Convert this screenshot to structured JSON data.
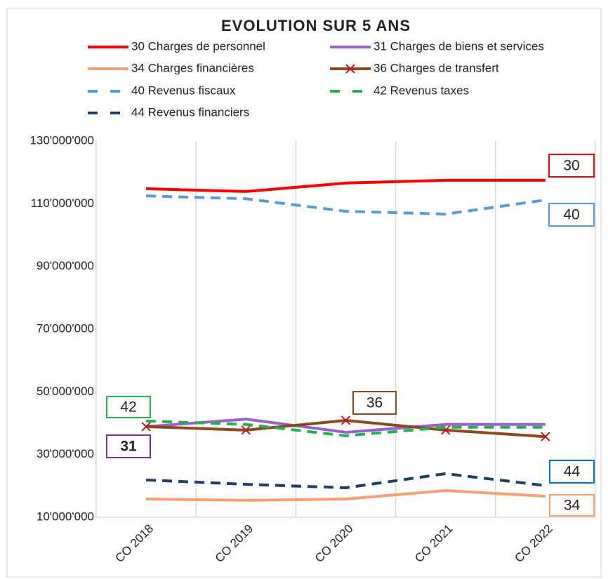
{
  "chart_data": {
    "type": "line",
    "title": "EVOLUTION SUR 5 ANS",
    "categories": [
      "CO 2018",
      "CO 2019",
      "CO 2020",
      "CO 2021",
      "CO 2022"
    ],
    "series": [
      {
        "name": "30 Charges de personnel",
        "color": "#ff0000",
        "values": [
          114800000,
          113900000,
          116600000,
          117500000,
          117500000
        ]
      },
      {
        "name": "31 Charges de biens et services",
        "color": "#9b5fd1",
        "values": [
          38900000,
          41300000,
          37100000,
          39600000,
          39600000
        ]
      },
      {
        "name": "34 Charges financières",
        "color": "#f4a070",
        "values": [
          15800000,
          15400000,
          15800000,
          18500000,
          16700000
        ]
      },
      {
        "name": "36 Charges de transfert",
        "color": "#8b4a1e",
        "marker": "x",
        "marker_color": "#c0141c",
        "values": [
          38900000,
          37800000,
          40900000,
          37800000,
          35700000
        ]
      },
      {
        "name": "40 Revenus fiscaux",
        "color": "#5b9bd5",
        "dash": true,
        "values": [
          112500000,
          111600000,
          107600000,
          106700000,
          111200000
        ]
      },
      {
        "name": "42 Revenus taxes",
        "color": "#22b14c",
        "dash": true,
        "values": [
          40700000,
          39600000,
          36000000,
          38700000,
          38700000
        ]
      },
      {
        "name": "44 Revenus financiers",
        "color": "#1f3e64",
        "dash": true,
        "values": [
          21900000,
          20500000,
          19400000,
          23900000,
          20100000
        ]
      }
    ],
    "annotations": [
      {
        "text": "30",
        "color": "#ff0000"
      },
      {
        "text": "40",
        "color": "#5b9bd5"
      },
      {
        "text": "42",
        "color": "#22b14c"
      },
      {
        "text": "36",
        "color": "#8b4a1e"
      },
      {
        "text": "31",
        "color": "#7030a0"
      },
      {
        "text": "44",
        "color": "#0070c0"
      },
      {
        "text": "34",
        "color": "#f4a070"
      }
    ],
    "ylim": [
      10000000,
      130000000
    ],
    "yticks": [
      {
        "value": 10000000,
        "label": "10'000'000"
      },
      {
        "value": 30000000,
        "label": "30'000'000"
      },
      {
        "value": 50000000,
        "label": "50'000'000"
      },
      {
        "value": 70000000,
        "label": "70'000'000"
      },
      {
        "value": 90000000,
        "label": "90'000'000"
      },
      {
        "value": 110000000,
        "label": "110'000'000"
      },
      {
        "value": 130000000,
        "label": "130'000'000"
      }
    ],
    "grid": "x"
  }
}
